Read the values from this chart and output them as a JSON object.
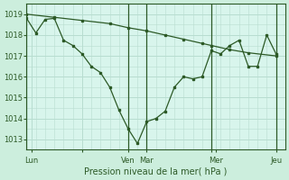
{
  "xlabel": "Pression niveau de la mer( hPa )",
  "bg_color": "#cceedd",
  "plot_bg_color": "#d8f5ec",
  "grid_color": "#b8ddd0",
  "line_color": "#2d5a27",
  "ylim": [
    1012.5,
    1019.5
  ],
  "yticks": [
    1013,
    1014,
    1015,
    1016,
    1017,
    1018,
    1019
  ],
  "xlim": [
    0,
    28
  ],
  "vline_positions": [
    0,
    11,
    13,
    20,
    27
  ],
  "xtick_positions": [
    0.5,
    6,
    11,
    13,
    20,
    20.5,
    27
  ],
  "xtick_labels": [
    "Lun",
    "",
    "Ven",
    "Mar",
    "",
    "Mer",
    "Jeu"
  ],
  "series1_x": [
    0,
    1,
    2,
    3,
    4,
    5,
    6,
    7,
    8,
    9,
    10,
    11,
    12,
    13,
    14,
    15,
    16,
    17,
    18,
    19,
    20,
    21,
    22,
    23,
    24,
    25,
    26,
    27
  ],
  "series1_y": [
    1018.8,
    1018.1,
    1018.75,
    1018.8,
    1017.75,
    1017.5,
    1017.1,
    1016.5,
    1016.2,
    1015.5,
    1014.4,
    1013.5,
    1012.8,
    1013.85,
    1014.0,
    1014.35,
    1015.5,
    1016.0,
    1015.9,
    1016.0,
    1017.25,
    1017.1,
    1017.5,
    1017.75,
    1016.5,
    1016.5,
    1018.0,
    1017.1
  ],
  "series2_x": [
    0,
    3,
    6,
    9,
    11,
    13,
    15,
    17,
    19,
    20,
    22,
    24,
    27
  ],
  "series2_y": [
    1019.0,
    1018.85,
    1018.7,
    1018.55,
    1018.35,
    1018.2,
    1018.0,
    1017.8,
    1017.6,
    1017.5,
    1017.3,
    1017.15,
    1017.0
  ]
}
